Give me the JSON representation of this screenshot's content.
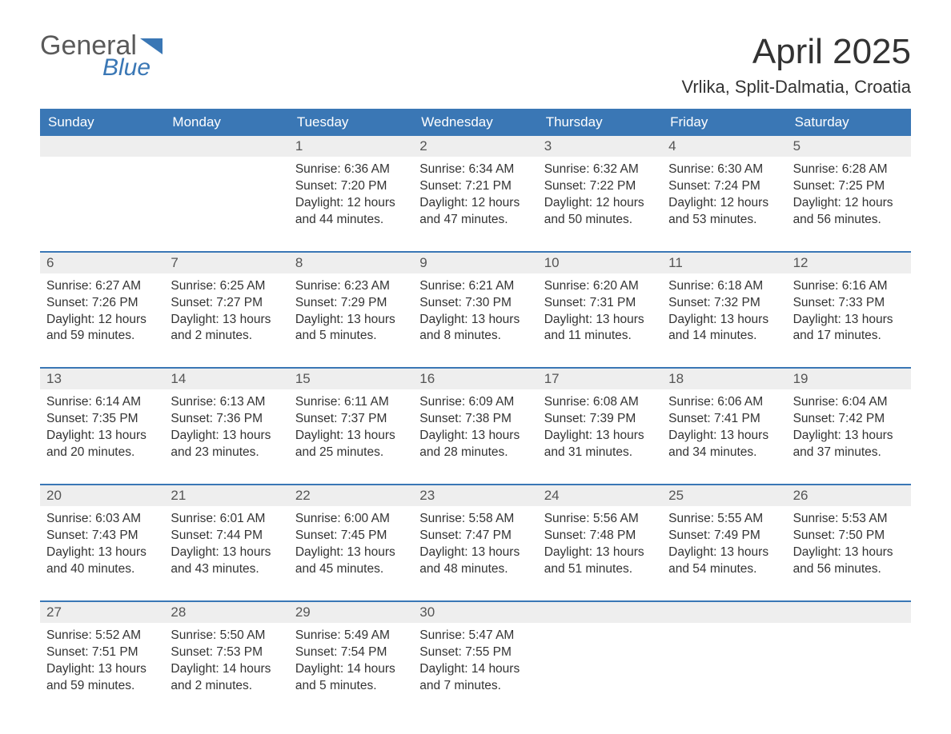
{
  "brand": {
    "word1": "General",
    "word2": "Blue"
  },
  "title": "April 2025",
  "location": "Vrlika, Split-Dalmatia, Croatia",
  "colors": {
    "header_bg": "#3a77b5",
    "header_text": "#ffffff",
    "daynum_bg": "#eeeeee",
    "rule": "#3a77b5",
    "brand_gray": "#5a5a5a",
    "brand_blue": "#3a77b5",
    "body_text": "#333333",
    "page_bg": "#ffffff"
  },
  "fonts": {
    "body_pt": 15.5,
    "title_pt": 44,
    "location_pt": 22,
    "dow_pt": 17,
    "daynum_pt": 17
  },
  "days_of_week": [
    "Sunday",
    "Monday",
    "Tuesday",
    "Wednesday",
    "Thursday",
    "Friday",
    "Saturday"
  ],
  "weeks": [
    [
      {
        "n": "",
        "sunrise": "",
        "sunset": "",
        "daylight": ""
      },
      {
        "n": "",
        "sunrise": "",
        "sunset": "",
        "daylight": ""
      },
      {
        "n": "1",
        "sunrise": "Sunrise: 6:36 AM",
        "sunset": "Sunset: 7:20 PM",
        "daylight": "Daylight: 12 hours and 44 minutes."
      },
      {
        "n": "2",
        "sunrise": "Sunrise: 6:34 AM",
        "sunset": "Sunset: 7:21 PM",
        "daylight": "Daylight: 12 hours and 47 minutes."
      },
      {
        "n": "3",
        "sunrise": "Sunrise: 6:32 AM",
        "sunset": "Sunset: 7:22 PM",
        "daylight": "Daylight: 12 hours and 50 minutes."
      },
      {
        "n": "4",
        "sunrise": "Sunrise: 6:30 AM",
        "sunset": "Sunset: 7:24 PM",
        "daylight": "Daylight: 12 hours and 53 minutes."
      },
      {
        "n": "5",
        "sunrise": "Sunrise: 6:28 AM",
        "sunset": "Sunset: 7:25 PM",
        "daylight": "Daylight: 12 hours and 56 minutes."
      }
    ],
    [
      {
        "n": "6",
        "sunrise": "Sunrise: 6:27 AM",
        "sunset": "Sunset: 7:26 PM",
        "daylight": "Daylight: 12 hours and 59 minutes."
      },
      {
        "n": "7",
        "sunrise": "Sunrise: 6:25 AM",
        "sunset": "Sunset: 7:27 PM",
        "daylight": "Daylight: 13 hours and 2 minutes."
      },
      {
        "n": "8",
        "sunrise": "Sunrise: 6:23 AM",
        "sunset": "Sunset: 7:29 PM",
        "daylight": "Daylight: 13 hours and 5 minutes."
      },
      {
        "n": "9",
        "sunrise": "Sunrise: 6:21 AM",
        "sunset": "Sunset: 7:30 PM",
        "daylight": "Daylight: 13 hours and 8 minutes."
      },
      {
        "n": "10",
        "sunrise": "Sunrise: 6:20 AM",
        "sunset": "Sunset: 7:31 PM",
        "daylight": "Daylight: 13 hours and 11 minutes."
      },
      {
        "n": "11",
        "sunrise": "Sunrise: 6:18 AM",
        "sunset": "Sunset: 7:32 PM",
        "daylight": "Daylight: 13 hours and 14 minutes."
      },
      {
        "n": "12",
        "sunrise": "Sunrise: 6:16 AM",
        "sunset": "Sunset: 7:33 PM",
        "daylight": "Daylight: 13 hours and 17 minutes."
      }
    ],
    [
      {
        "n": "13",
        "sunrise": "Sunrise: 6:14 AM",
        "sunset": "Sunset: 7:35 PM",
        "daylight": "Daylight: 13 hours and 20 minutes."
      },
      {
        "n": "14",
        "sunrise": "Sunrise: 6:13 AM",
        "sunset": "Sunset: 7:36 PM",
        "daylight": "Daylight: 13 hours and 23 minutes."
      },
      {
        "n": "15",
        "sunrise": "Sunrise: 6:11 AM",
        "sunset": "Sunset: 7:37 PM",
        "daylight": "Daylight: 13 hours and 25 minutes."
      },
      {
        "n": "16",
        "sunrise": "Sunrise: 6:09 AM",
        "sunset": "Sunset: 7:38 PM",
        "daylight": "Daylight: 13 hours and 28 minutes."
      },
      {
        "n": "17",
        "sunrise": "Sunrise: 6:08 AM",
        "sunset": "Sunset: 7:39 PM",
        "daylight": "Daylight: 13 hours and 31 minutes."
      },
      {
        "n": "18",
        "sunrise": "Sunrise: 6:06 AM",
        "sunset": "Sunset: 7:41 PM",
        "daylight": "Daylight: 13 hours and 34 minutes."
      },
      {
        "n": "19",
        "sunrise": "Sunrise: 6:04 AM",
        "sunset": "Sunset: 7:42 PM",
        "daylight": "Daylight: 13 hours and 37 minutes."
      }
    ],
    [
      {
        "n": "20",
        "sunrise": "Sunrise: 6:03 AM",
        "sunset": "Sunset: 7:43 PM",
        "daylight": "Daylight: 13 hours and 40 minutes."
      },
      {
        "n": "21",
        "sunrise": "Sunrise: 6:01 AM",
        "sunset": "Sunset: 7:44 PM",
        "daylight": "Daylight: 13 hours and 43 minutes."
      },
      {
        "n": "22",
        "sunrise": "Sunrise: 6:00 AM",
        "sunset": "Sunset: 7:45 PM",
        "daylight": "Daylight: 13 hours and 45 minutes."
      },
      {
        "n": "23",
        "sunrise": "Sunrise: 5:58 AM",
        "sunset": "Sunset: 7:47 PM",
        "daylight": "Daylight: 13 hours and 48 minutes."
      },
      {
        "n": "24",
        "sunrise": "Sunrise: 5:56 AM",
        "sunset": "Sunset: 7:48 PM",
        "daylight": "Daylight: 13 hours and 51 minutes."
      },
      {
        "n": "25",
        "sunrise": "Sunrise: 5:55 AM",
        "sunset": "Sunset: 7:49 PM",
        "daylight": "Daylight: 13 hours and 54 minutes."
      },
      {
        "n": "26",
        "sunrise": "Sunrise: 5:53 AM",
        "sunset": "Sunset: 7:50 PM",
        "daylight": "Daylight: 13 hours and 56 minutes."
      }
    ],
    [
      {
        "n": "27",
        "sunrise": "Sunrise: 5:52 AM",
        "sunset": "Sunset: 7:51 PM",
        "daylight": "Daylight: 13 hours and 59 minutes."
      },
      {
        "n": "28",
        "sunrise": "Sunrise: 5:50 AM",
        "sunset": "Sunset: 7:53 PM",
        "daylight": "Daylight: 14 hours and 2 minutes."
      },
      {
        "n": "29",
        "sunrise": "Sunrise: 5:49 AM",
        "sunset": "Sunset: 7:54 PM",
        "daylight": "Daylight: 14 hours and 5 minutes."
      },
      {
        "n": "30",
        "sunrise": "Sunrise: 5:47 AM",
        "sunset": "Sunset: 7:55 PM",
        "daylight": "Daylight: 14 hours and 7 minutes."
      },
      {
        "n": "",
        "sunrise": "",
        "sunset": "",
        "daylight": ""
      },
      {
        "n": "",
        "sunrise": "",
        "sunset": "",
        "daylight": ""
      },
      {
        "n": "",
        "sunrise": "",
        "sunset": "",
        "daylight": ""
      }
    ]
  ]
}
